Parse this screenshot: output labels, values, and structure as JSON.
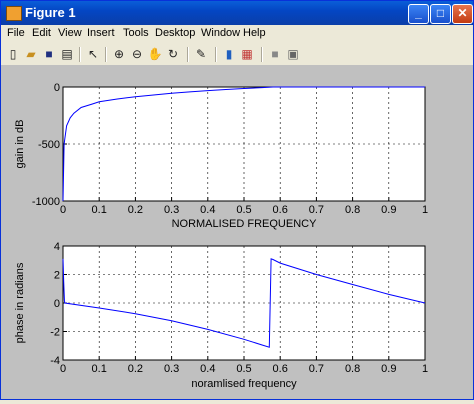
{
  "window": {
    "title": "Figure 1"
  },
  "title_buttons": {
    "minimize": "_",
    "maximize": "□",
    "close": "✕"
  },
  "menu": [
    "File",
    "Edit",
    "View",
    "Insert",
    "Tools",
    "Desktop",
    "Window",
    "Help"
  ],
  "toolbar_icons": [
    "new-file-icon",
    "open-folder-icon",
    "save-icon",
    "print-icon",
    "select-arrow-icon",
    "zoom-in-icon",
    "zoom-out-icon",
    "pan-icon",
    "rotate-icon",
    "data-cursor-icon",
    "colorbar-icon",
    "legend-icon",
    "hide-plot-tools-icon",
    "show-plot-tools-icon"
  ],
  "chart_data": [
    {
      "type": "line",
      "xlabel": "NORMALISED FREQUENCY",
      "ylabel": "gain in dB",
      "xlim": [
        0,
        1
      ],
      "ylim": [
        -1000,
        0
      ],
      "xticks": [
        "0",
        "0.1",
        "0.2",
        "0.3",
        "0.4",
        "0.5",
        "0.6",
        "0.7",
        "0.8",
        "0.9",
        "1"
      ],
      "yticks": [
        "0",
        "-500",
        "-1000"
      ],
      "grid": true,
      "color": "#0000ff",
      "x": [
        0,
        0.003,
        0.01,
        0.02,
        0.03,
        0.05,
        0.08,
        0.1,
        0.15,
        0.2,
        0.25,
        0.3,
        0.35,
        0.4,
        0.45,
        0.5,
        0.55,
        0.58,
        0.6,
        0.7,
        0.8,
        0.9,
        1.0
      ],
      "y": [
        -1000,
        -500,
        -340,
        -270,
        -230,
        -180,
        -150,
        -130,
        -105,
        -85,
        -70,
        -55,
        -43,
        -32,
        -22,
        -13,
        -5,
        0,
        0,
        0,
        0,
        0,
        0
      ]
    },
    {
      "type": "line",
      "xlabel": "noramlised frequency",
      "ylabel": "phase in radians",
      "xlim": [
        0,
        1
      ],
      "ylim": [
        -4,
        4
      ],
      "xticks": [
        "0",
        "0.1",
        "0.2",
        "0.3",
        "0.4",
        "0.5",
        "0.6",
        "0.7",
        "0.8",
        "0.9",
        "1"
      ],
      "yticks": [
        "4",
        "2",
        "0",
        "-2",
        "-4"
      ],
      "grid": true,
      "color": "#0000ff",
      "x": [
        0,
        0.002,
        0.004,
        0.005,
        0.1,
        0.2,
        0.3,
        0.4,
        0.5,
        0.55,
        0.57,
        0.575,
        0.58,
        0.6,
        0.7,
        0.8,
        0.9,
        1.0
      ],
      "y": [
        3.1,
        1.5,
        0.2,
        0.0,
        -0.35,
        -0.75,
        -1.25,
        -1.85,
        -2.55,
        -2.95,
        -3.1,
        3.1,
        3.05,
        2.8,
        2.0,
        1.3,
        0.6,
        0.0
      ]
    }
  ]
}
